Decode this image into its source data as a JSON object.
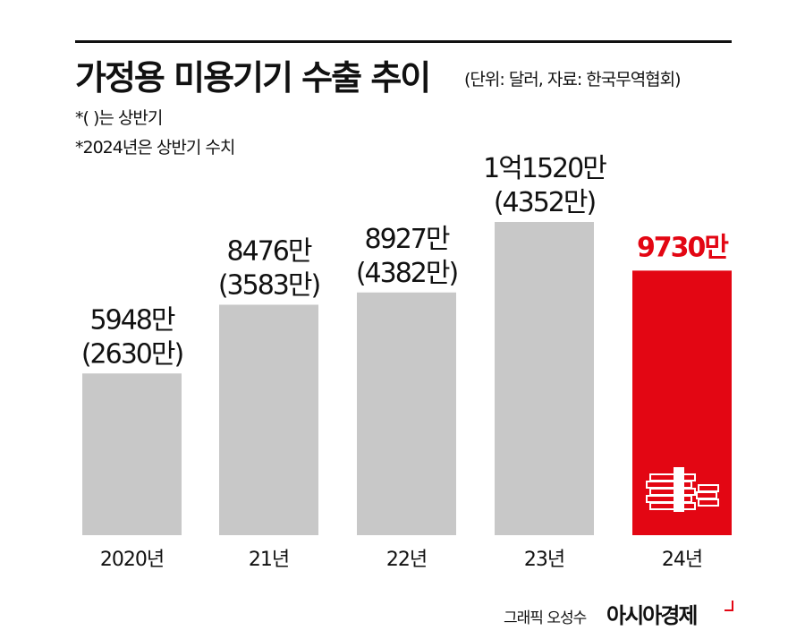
{
  "header": {
    "title": "가정용 미용기기 수출 추이",
    "subtitle": "(단위: 달러, 자료: 한국무역협회)",
    "note1": "*( )는 상반기",
    "note2": "*2024년은 상반기 수치"
  },
  "chart_data": {
    "type": "bar",
    "categories": [
      "2020년",
      "21년",
      "22년",
      "23년",
      "24년"
    ],
    "values": [
      59480000,
      84760000,
      89270000,
      115200000,
      97300000
    ],
    "value_labels": [
      "5948만",
      "8476만",
      "8927만",
      "1억1520만",
      "9730만"
    ],
    "first_half_labels": [
      "(2630만)",
      "(3583만)",
      "(4382만)",
      "(4352만)",
      ""
    ],
    "highlight_index": 4,
    "colors": {
      "bar": "#c8c8c8",
      "highlight": "#e30613",
      "text": "#111111"
    },
    "legend": "none",
    "grid": false
  },
  "footer": {
    "credit": "그래픽 오성수",
    "brand": "아시아경제"
  },
  "icons": {
    "highlight_bar_icon": "money-stack-icon",
    "brand_icon": "brand-mark-icon"
  }
}
